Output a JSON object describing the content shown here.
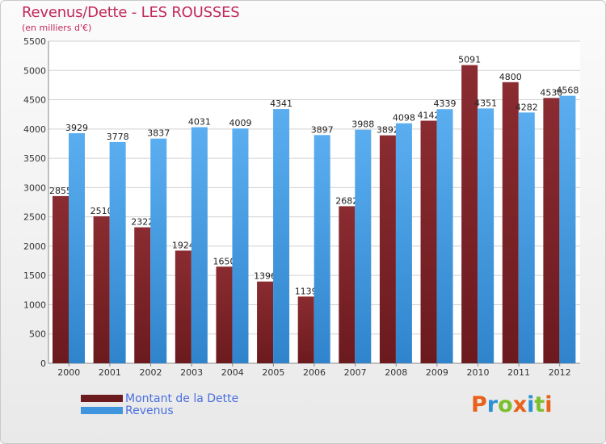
{
  "header": {
    "title": "Revenus/Dette - LES ROUSSES",
    "subtitle": "(en milliers d'€)"
  },
  "logo": {
    "text": "Proxiti",
    "colors": [
      "#e8601c",
      "#2e8fd4",
      "#7cbf2e",
      "#e8601c",
      "#2e8fd4",
      "#7cbf2e",
      "#e8601c"
    ]
  },
  "colors": {
    "debt": "#6b1a1e",
    "debt_light": "#8a2c31",
    "revenue": "#3f96df",
    "revenue_light": "#5aaef0",
    "grid": "#d0d0d0",
    "axis_text": "#333333"
  },
  "chart_data": {
    "type": "bar",
    "title": "Revenus/Dette - LES ROUSSES",
    "subtitle": "(en milliers d'€)",
    "categories": [
      "2000",
      "2001",
      "2002",
      "2003",
      "2004",
      "2005",
      "2006",
      "2007",
      "2008",
      "2009",
      "2010",
      "2011",
      "2012"
    ],
    "series": [
      {
        "name": "Montant de la Dette",
        "values": [
          2855,
          2510,
          2322,
          1924,
          1650,
          1396,
          1139,
          2682,
          3892,
          4142,
          5091,
          4800,
          4530
        ]
      },
      {
        "name": "Revenus",
        "values": [
          3929,
          3778,
          3837,
          4031,
          4009,
          4341,
          3897,
          3988,
          4098,
          4339,
          4351,
          4282,
          4568
        ]
      }
    ],
    "ylim": [
      0,
      5500
    ],
    "yticks": [
      0,
      500,
      1000,
      1500,
      2000,
      2500,
      3000,
      3500,
      4000,
      4500,
      5000,
      5500
    ],
    "grid": true,
    "legend": "bottom-left"
  }
}
